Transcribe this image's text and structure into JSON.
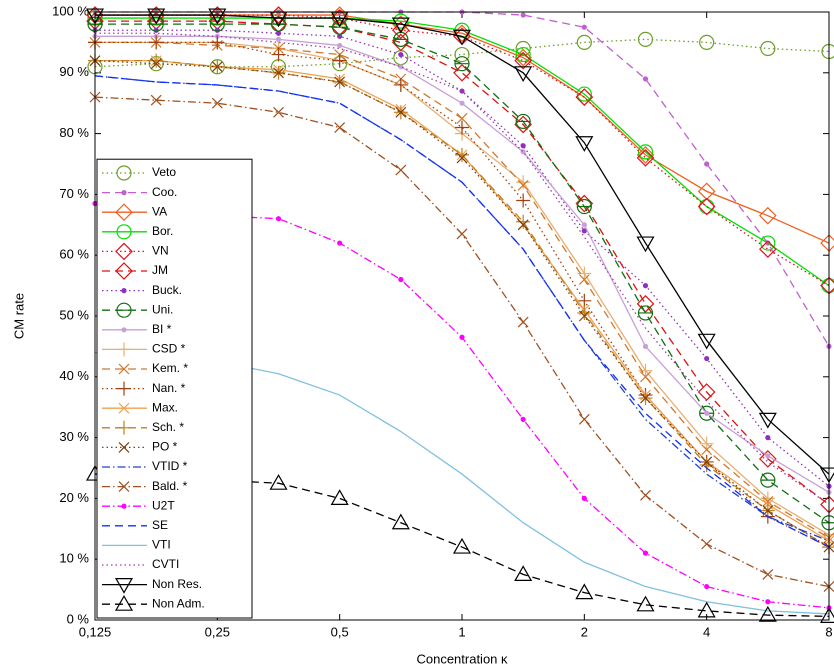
{
  "chart_data": {
    "type": "line",
    "xlabel": "Concentration κ",
    "ylabel": "CM rate",
    "xscale": "log",
    "legend": "lower left",
    "x": [
      0.125,
      0.1768,
      0.25,
      0.3536,
      0.5,
      0.7071,
      1,
      1.4142,
      2,
      2.8284,
      4,
      5.6569,
      8
    ],
    "xlim": [
      0.125,
      8
    ],
    "xticks": [
      {
        "value": 0.125,
        "label": "0,125"
      },
      {
        "value": 0.25,
        "label": "0,25"
      },
      {
        "value": 0.5,
        "label": "0,5"
      },
      1,
      2,
      4,
      8
    ],
    "ylim": [
      0,
      100
    ],
    "yticks": [
      {
        "value": 0,
        "label": "0 %"
      },
      {
        "value": 10,
        "label": "10 %"
      },
      {
        "value": 20,
        "label": "20 %"
      },
      {
        "value": 30,
        "label": "30 %"
      },
      {
        "value": 40,
        "label": "40 %"
      },
      {
        "value": 50,
        "label": "50 %"
      },
      {
        "value": 60,
        "label": "60 %"
      },
      {
        "value": 70,
        "label": "70 %"
      },
      {
        "value": 80,
        "label": "80 %"
      },
      {
        "value": 90,
        "label": "90 %"
      },
      {
        "value": 100,
        "label": "100 %"
      }
    ],
    "series": [
      {
        "name": "Veto",
        "color": "#6e9e2a",
        "dash": "dotted",
        "marker": "circle",
        "values": [
          91,
          91.5,
          91,
          91,
          91.5,
          92.5,
          93,
          94,
          95,
          95.5,
          95,
          94,
          93.5
        ]
      },
      {
        "name": "Coo.",
        "color": "#c060d0",
        "dash": "dashed",
        "marker": "dot",
        "values": [
          100,
          100,
          100,
          100,
          100,
          100,
          100,
          99.5,
          97.5,
          89,
          75,
          62,
          45
        ]
      },
      {
        "name": "VA",
        "color": "#f06020",
        "dash": "solid",
        "marker": "diamond",
        "values": [
          99.5,
          99.5,
          99.5,
          99.5,
          99.5,
          98,
          96.5,
          92.5,
          86,
          76.5,
          70.5,
          66.5,
          62
        ]
      },
      {
        "name": "Bor.",
        "color": "#00e000",
        "dash": "solid",
        "marker": "circle",
        "values": [
          99,
          99,
          99,
          99,
          99,
          98.5,
          97,
          93,
          86.5,
          77,
          68,
          62,
          55
        ]
      },
      {
        "name": "VN",
        "color": "#e01020",
        "dash": "dotted",
        "marker": "diamond",
        "values": [
          99.5,
          99.5,
          99.5,
          99.5,
          99,
          97,
          96,
          92,
          86,
          76,
          68,
          61,
          55
        ]
      },
      {
        "name": "JM",
        "color": "#e01010",
        "dash": "dashed",
        "marker": "diamond",
        "values": [
          98.5,
          98.5,
          98.5,
          98,
          97.5,
          95,
          90,
          81.5,
          68.5,
          52,
          37.5,
          26.5,
          19
        ]
      },
      {
        "name": "Buck.",
        "color": "#9030c0",
        "dash": "dotted",
        "marker": "dot",
        "values": [
          97,
          97,
          97,
          96.5,
          96,
          93,
          87,
          78,
          64,
          55,
          43,
          30,
          22
        ]
      },
      {
        "name": "Uni.",
        "color": "#107010",
        "dash": "dashed",
        "marker": "circleminus",
        "values": [
          98,
          98,
          98,
          98,
          97.5,
          95.5,
          91.5,
          82,
          68,
          50.5,
          34,
          23,
          16
        ]
      },
      {
        "name": "BI *",
        "color": "#c8a0d8",
        "dash": "solid",
        "marker": "dot",
        "values": [
          96,
          96,
          96,
          95.5,
          94.5,
          91,
          85,
          77,
          65,
          45,
          34,
          27,
          21
        ]
      },
      {
        "name": "CSD *",
        "color": "#e8b070",
        "dash": "solid",
        "marker": "plus",
        "values": [
          95,
          95,
          95,
          94,
          92,
          88,
          80,
          72,
          57,
          41,
          29,
          20,
          14
        ]
      },
      {
        "name": "Kem. *",
        "color": "#d07830",
        "dash": "dashed",
        "marker": "x",
        "values": [
          95,
          95,
          94.5,
          94,
          93,
          89,
          82.5,
          71.5,
          56,
          40,
          28,
          19.5,
          13.5
        ]
      },
      {
        "name": "Nan. *",
        "color": "#a04010",
        "dash": "dotted",
        "marker": "plus",
        "values": [
          95,
          95,
          95,
          93,
          92,
          88,
          81,
          69,
          52.5,
          37,
          26,
          17,
          12
        ]
      },
      {
        "name": "Max.",
        "color": "#f0a050",
        "dash": "solid",
        "marker": "x",
        "values": [
          92,
          92,
          91,
          90.5,
          89,
          84,
          76.5,
          65,
          51,
          37,
          26,
          19,
          13
        ]
      },
      {
        "name": "Sch. *",
        "color": "#c08020",
        "dash": "dashed",
        "marker": "plus",
        "values": [
          92,
          92,
          91,
          90,
          88.5,
          83.5,
          76.5,
          65.5,
          50.5,
          36.5,
          25.5,
          18,
          12
        ]
      },
      {
        "name": "PO *",
        "color": "#804010",
        "dash": "dotted",
        "marker": "x",
        "values": [
          92,
          91.5,
          91,
          90,
          88.5,
          83.5,
          76,
          65,
          50,
          36.5,
          26,
          18,
          12
        ]
      },
      {
        "name": "VTID *",
        "color": "#2040d0",
        "dash": "dashdot",
        "marker": "none",
        "values": [
          89.5,
          88.5,
          88,
          87,
          85,
          79,
          72,
          61,
          46,
          33,
          24,
          17,
          13
        ]
      },
      {
        "name": "Bald. *",
        "color": "#a05020",
        "dash": "dashdot",
        "marker": "x",
        "values": [
          86,
          85.5,
          85,
          83.5,
          81,
          74,
          63.5,
          49,
          33,
          20.5,
          12.5,
          7.5,
          5.5
        ]
      },
      {
        "name": "U2T",
        "color": "#ff00ff",
        "dash": "dashdot",
        "marker": "dot",
        "values": [
          68.5,
          67,
          66.5,
          66,
          62,
          56,
          46.5,
          33,
          20,
          11,
          5.5,
          3,
          2
        ]
      },
      {
        "name": "SE",
        "color": "#1030ff",
        "dash": "dashed",
        "marker": "none",
        "values": [
          89.5,
          88.5,
          88,
          87,
          85,
          79,
          72,
          61,
          46,
          34,
          25,
          17,
          12
        ]
      },
      {
        "name": "VTI",
        "color": "#80c0e0",
        "dash": "solid",
        "marker": "none",
        "values": [
          44,
          43,
          42.5,
          40.5,
          37,
          31,
          24,
          16,
          9.5,
          5.5,
          3,
          1.5,
          1
        ]
      },
      {
        "name": "CVTI",
        "color": "#a040a0",
        "dash": "dotted",
        "marker": "none",
        "values": [
          96.5,
          96.5,
          96,
          95,
          94,
          91,
          87,
          77,
          63,
          48,
          36,
          26,
          19
        ]
      },
      {
        "name": "Non Res.",
        "color": "#000000",
        "dash": "solid",
        "marker": "tridown",
        "values": [
          99.5,
          99.5,
          99.5,
          99,
          99,
          98,
          96,
          90,
          78.5,
          62,
          46,
          33,
          24
        ]
      },
      {
        "name": "Non Adm.",
        "color": "#000000",
        "dash": "dashed",
        "marker": "triup",
        "values": [
          24,
          23.5,
          23,
          22.5,
          20,
          16,
          12,
          7.5,
          4.5,
          2.5,
          1.5,
          0.8,
          0.6
        ]
      }
    ]
  }
}
